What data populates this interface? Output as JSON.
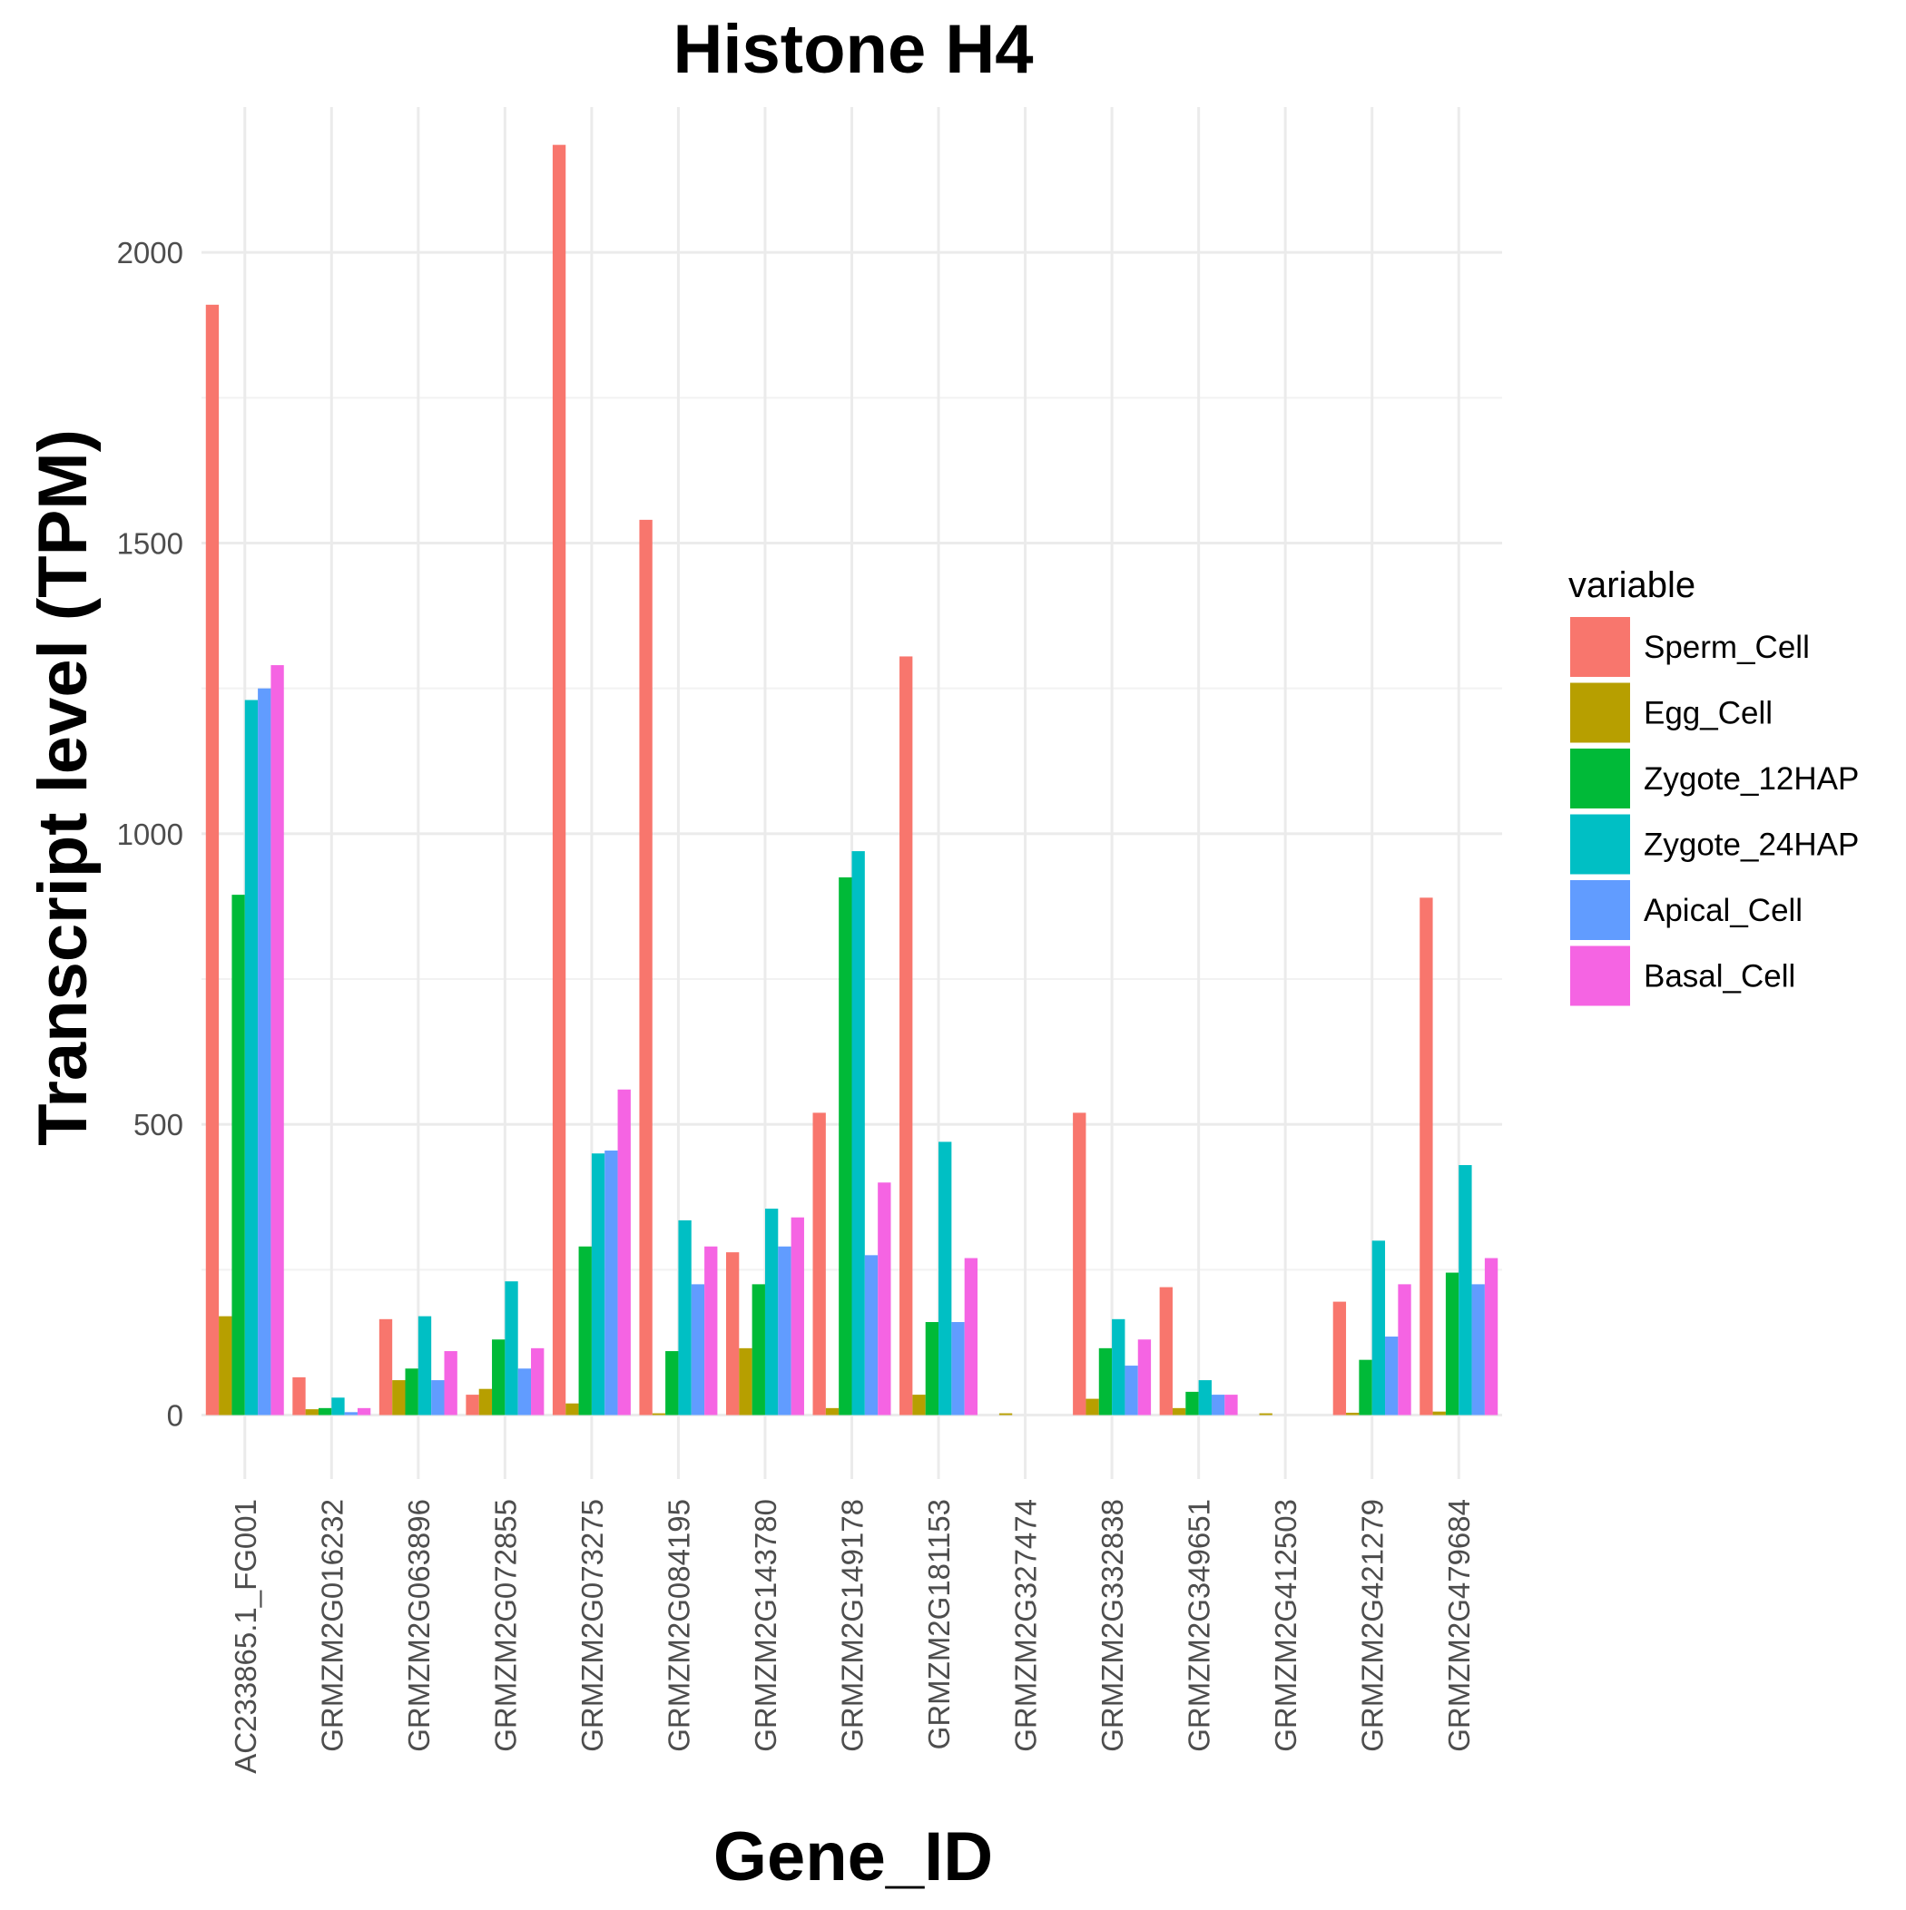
{
  "chart_data": {
    "type": "bar",
    "title": "Histone H4",
    "xlabel": "Gene_ID",
    "ylabel": "Transcript level (TPM)",
    "ylim": [
      -110,
      2250
    ],
    "yticks": [
      0,
      500,
      1000,
      1500,
      2000
    ],
    "grid": true,
    "legend_title": "variable",
    "legend_position": "right",
    "categories": [
      "AC233865.1_FG001",
      "GRMZM2G016232",
      "GRMZM2G063896",
      "GRMZM2G072855",
      "GRMZM2G073275",
      "GRMZM2G084195",
      "GRMZM2G143780",
      "GRMZM2G149178",
      "GRMZM2G181153",
      "GRMZM2G327474",
      "GRMZM2G332838",
      "GRMZM2G349651",
      "GRMZM2G412503",
      "GRMZM2G421279",
      "GRMZM2G479684"
    ],
    "series": [
      {
        "name": "Sperm_Cell",
        "color": "#F8766D",
        "values": [
          1910,
          65,
          165,
          35,
          2185,
          1540,
          280,
          520,
          1305,
          0,
          520,
          220,
          0,
          195,
          890
        ]
      },
      {
        "name": "Egg_Cell",
        "color": "#B79F00",
        "values": [
          170,
          10,
          60,
          45,
          20,
          3,
          115,
          12,
          35,
          3,
          28,
          12,
          3,
          4,
          6
        ]
      },
      {
        "name": "Zygote_12HAP",
        "color": "#00BA38",
        "values": [
          895,
          12,
          80,
          130,
          290,
          110,
          225,
          925,
          160,
          0,
          115,
          40,
          0,
          95,
          245
        ]
      },
      {
        "name": "Zygote_24HAP",
        "color": "#00BFC4",
        "values": [
          1230,
          30,
          170,
          230,
          450,
          335,
          355,
          970,
          470,
          0,
          165,
          60,
          0,
          300,
          430
        ]
      },
      {
        "name": "Apical_Cell",
        "color": "#619CFF",
        "values": [
          1250,
          5,
          60,
          80,
          455,
          225,
          290,
          275,
          160,
          0,
          85,
          35,
          0,
          135,
          225
        ]
      },
      {
        "name": "Basal_Cell",
        "color": "#F564E3",
        "values": [
          1290,
          12,
          110,
          115,
          560,
          290,
          340,
          400,
          270,
          0,
          130,
          35,
          0,
          225,
          270
        ]
      }
    ]
  }
}
